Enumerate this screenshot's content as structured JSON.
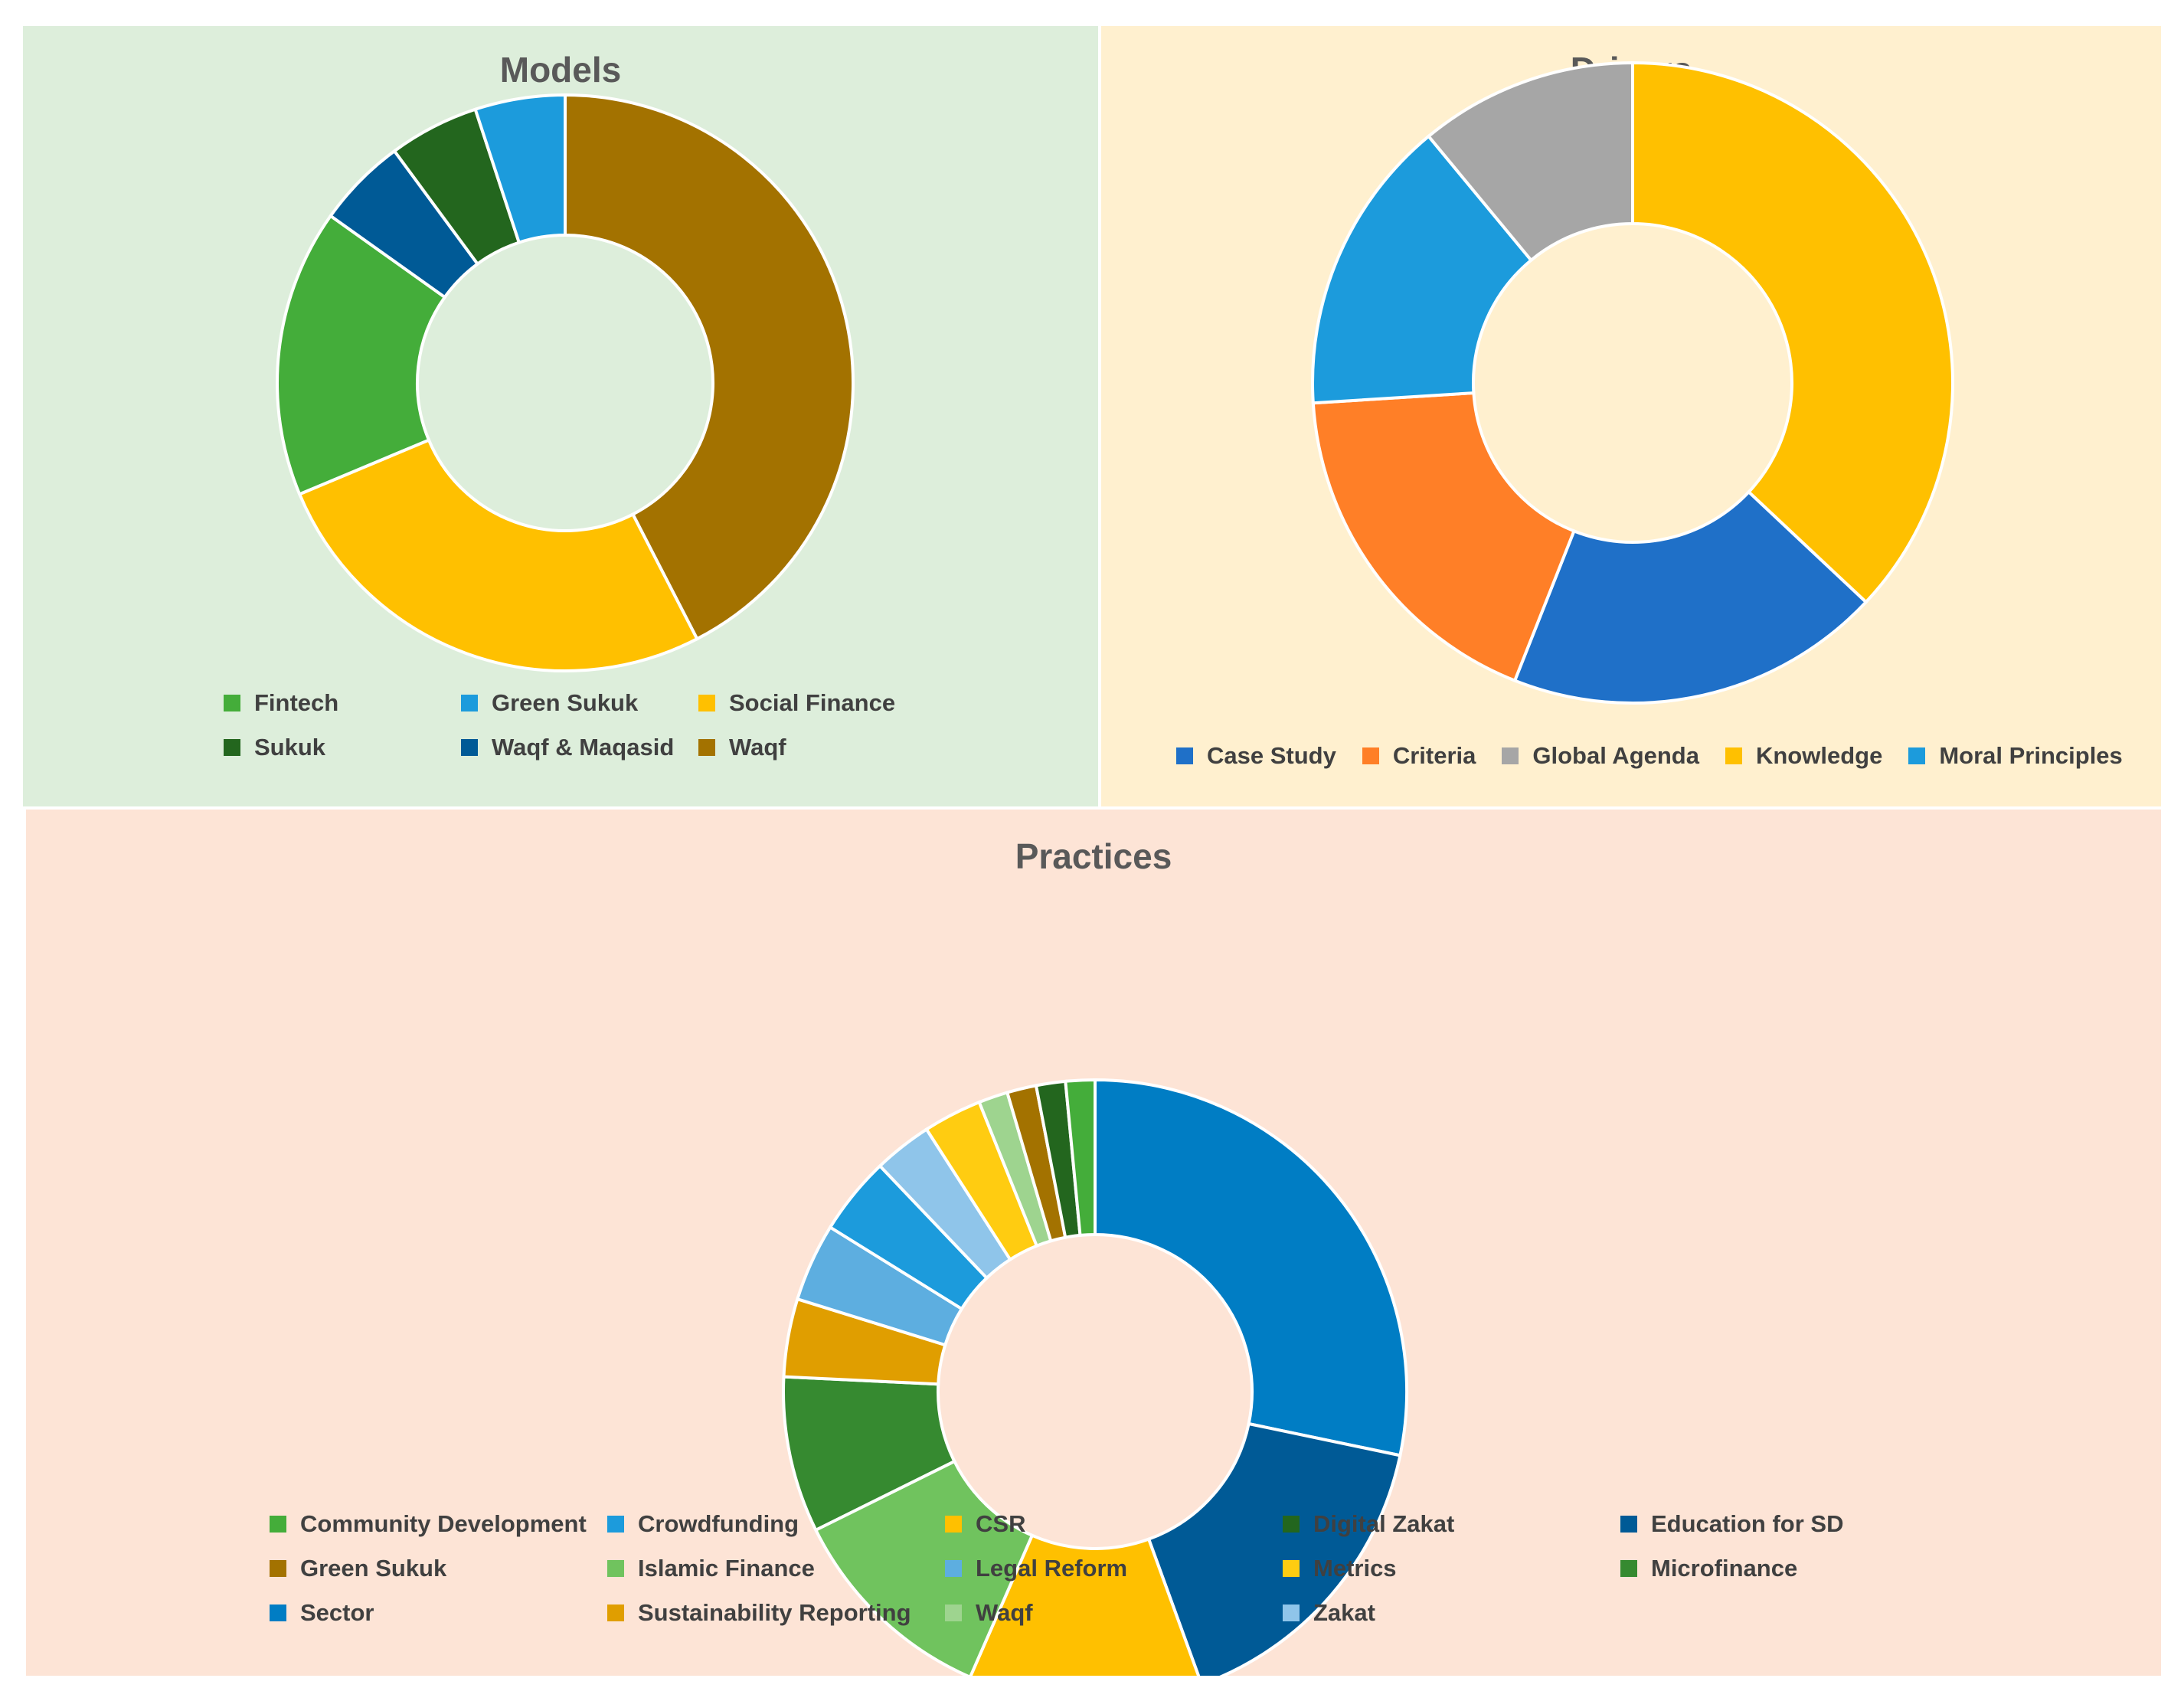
{
  "chart_data": [
    {
      "type": "pie",
      "id": "models",
      "title": "Models",
      "hole": true,
      "slices": [
        {
          "label": "Waqf",
          "value": 42,
          "color": "#A37200"
        },
        {
          "label": "Social Finance",
          "value": 26,
          "color": "#FFC000"
        },
        {
          "label": "Fintech",
          "value": 16,
          "color": "#44AD3A"
        },
        {
          "label": "Waqf & Maqasid",
          "value": 5,
          "color": "#005A96"
        },
        {
          "label": "Sukuk",
          "value": 5,
          "color": "#23661E"
        },
        {
          "label": "Green Sukuk",
          "value": 5,
          "color": "#1C9BDC"
        }
      ],
      "legend": [
        "Fintech",
        "Green Sukuk",
        "Social Finance",
        "Sukuk",
        "Waqf & Maqasid",
        "Waqf"
      ]
    },
    {
      "type": "pie",
      "id": "drivers",
      "title": "Drivers",
      "hole": true,
      "slices": [
        {
          "label": "Knowledge",
          "value": 37,
          "color": "#FFC000"
        },
        {
          "label": "Case Study",
          "value": 19,
          "color": "#1F70C8"
        },
        {
          "label": "Criteria",
          "value": 18,
          "color": "#FF7F27"
        },
        {
          "label": "Moral Principles",
          "value": 15,
          "color": "#1C9BDC"
        },
        {
          "label": "Global Agenda",
          "value": 11,
          "color": "#A6A6A6"
        }
      ],
      "legend": [
        "Case Study",
        "Criteria",
        "Global Agenda",
        "Knowledge",
        "Moral Principles"
      ]
    },
    {
      "type": "pie",
      "id": "practices",
      "title": "Practices",
      "hole": true,
      "slices": [
        {
          "label": "Sector",
          "value": 28,
          "color": "#007DC4"
        },
        {
          "label": "Education for SD",
          "value": 16,
          "color": "#005A96"
        },
        {
          "label": "CSR",
          "value": 12,
          "color": "#FFC000"
        },
        {
          "label": "Islamic Finance",
          "value": 11,
          "color": "#70C35E"
        },
        {
          "label": "Microfinance",
          "value": 8,
          "color": "#368A30"
        },
        {
          "label": "Sustainability Reporting",
          "value": 4,
          "color": "#E09E00"
        },
        {
          "label": "Legal Reform",
          "value": 4,
          "color": "#5DAEE0"
        },
        {
          "label": "Crowdfunding",
          "value": 4,
          "color": "#1C9BDC"
        },
        {
          "label": "Zakat",
          "value": 3,
          "color": "#8FC5EA"
        },
        {
          "label": "Metrics",
          "value": 3,
          "color": "#FFCC11"
        },
        {
          "label": "Waqf",
          "value": 1.5,
          "color": "#9ED48F"
        },
        {
          "label": "Green Sukuk",
          "value": 1.5,
          "color": "#A37200"
        },
        {
          "label": "Digital Zakat",
          "value": 1.5,
          "color": "#23661E"
        },
        {
          "label": "Community Development",
          "value": 1.5,
          "color": "#44AD3A"
        }
      ],
      "legend": [
        "Community Development",
        "Crowdfunding",
        "CSR",
        "Digital Zakat",
        "Education for SD",
        "Green Sukuk",
        "Islamic Finance",
        "Legal Reform",
        "Metrics",
        "Microfinance",
        "Sector",
        "Sustainability Reporting",
        "Waqf",
        "Zakat"
      ]
    }
  ],
  "colors": {
    "models_bg": "#DDEEDB",
    "drivers_bg": "#FFF0CF",
    "practices_bg": "#FDE4D6",
    "slice_border": "#FFFFFF"
  }
}
